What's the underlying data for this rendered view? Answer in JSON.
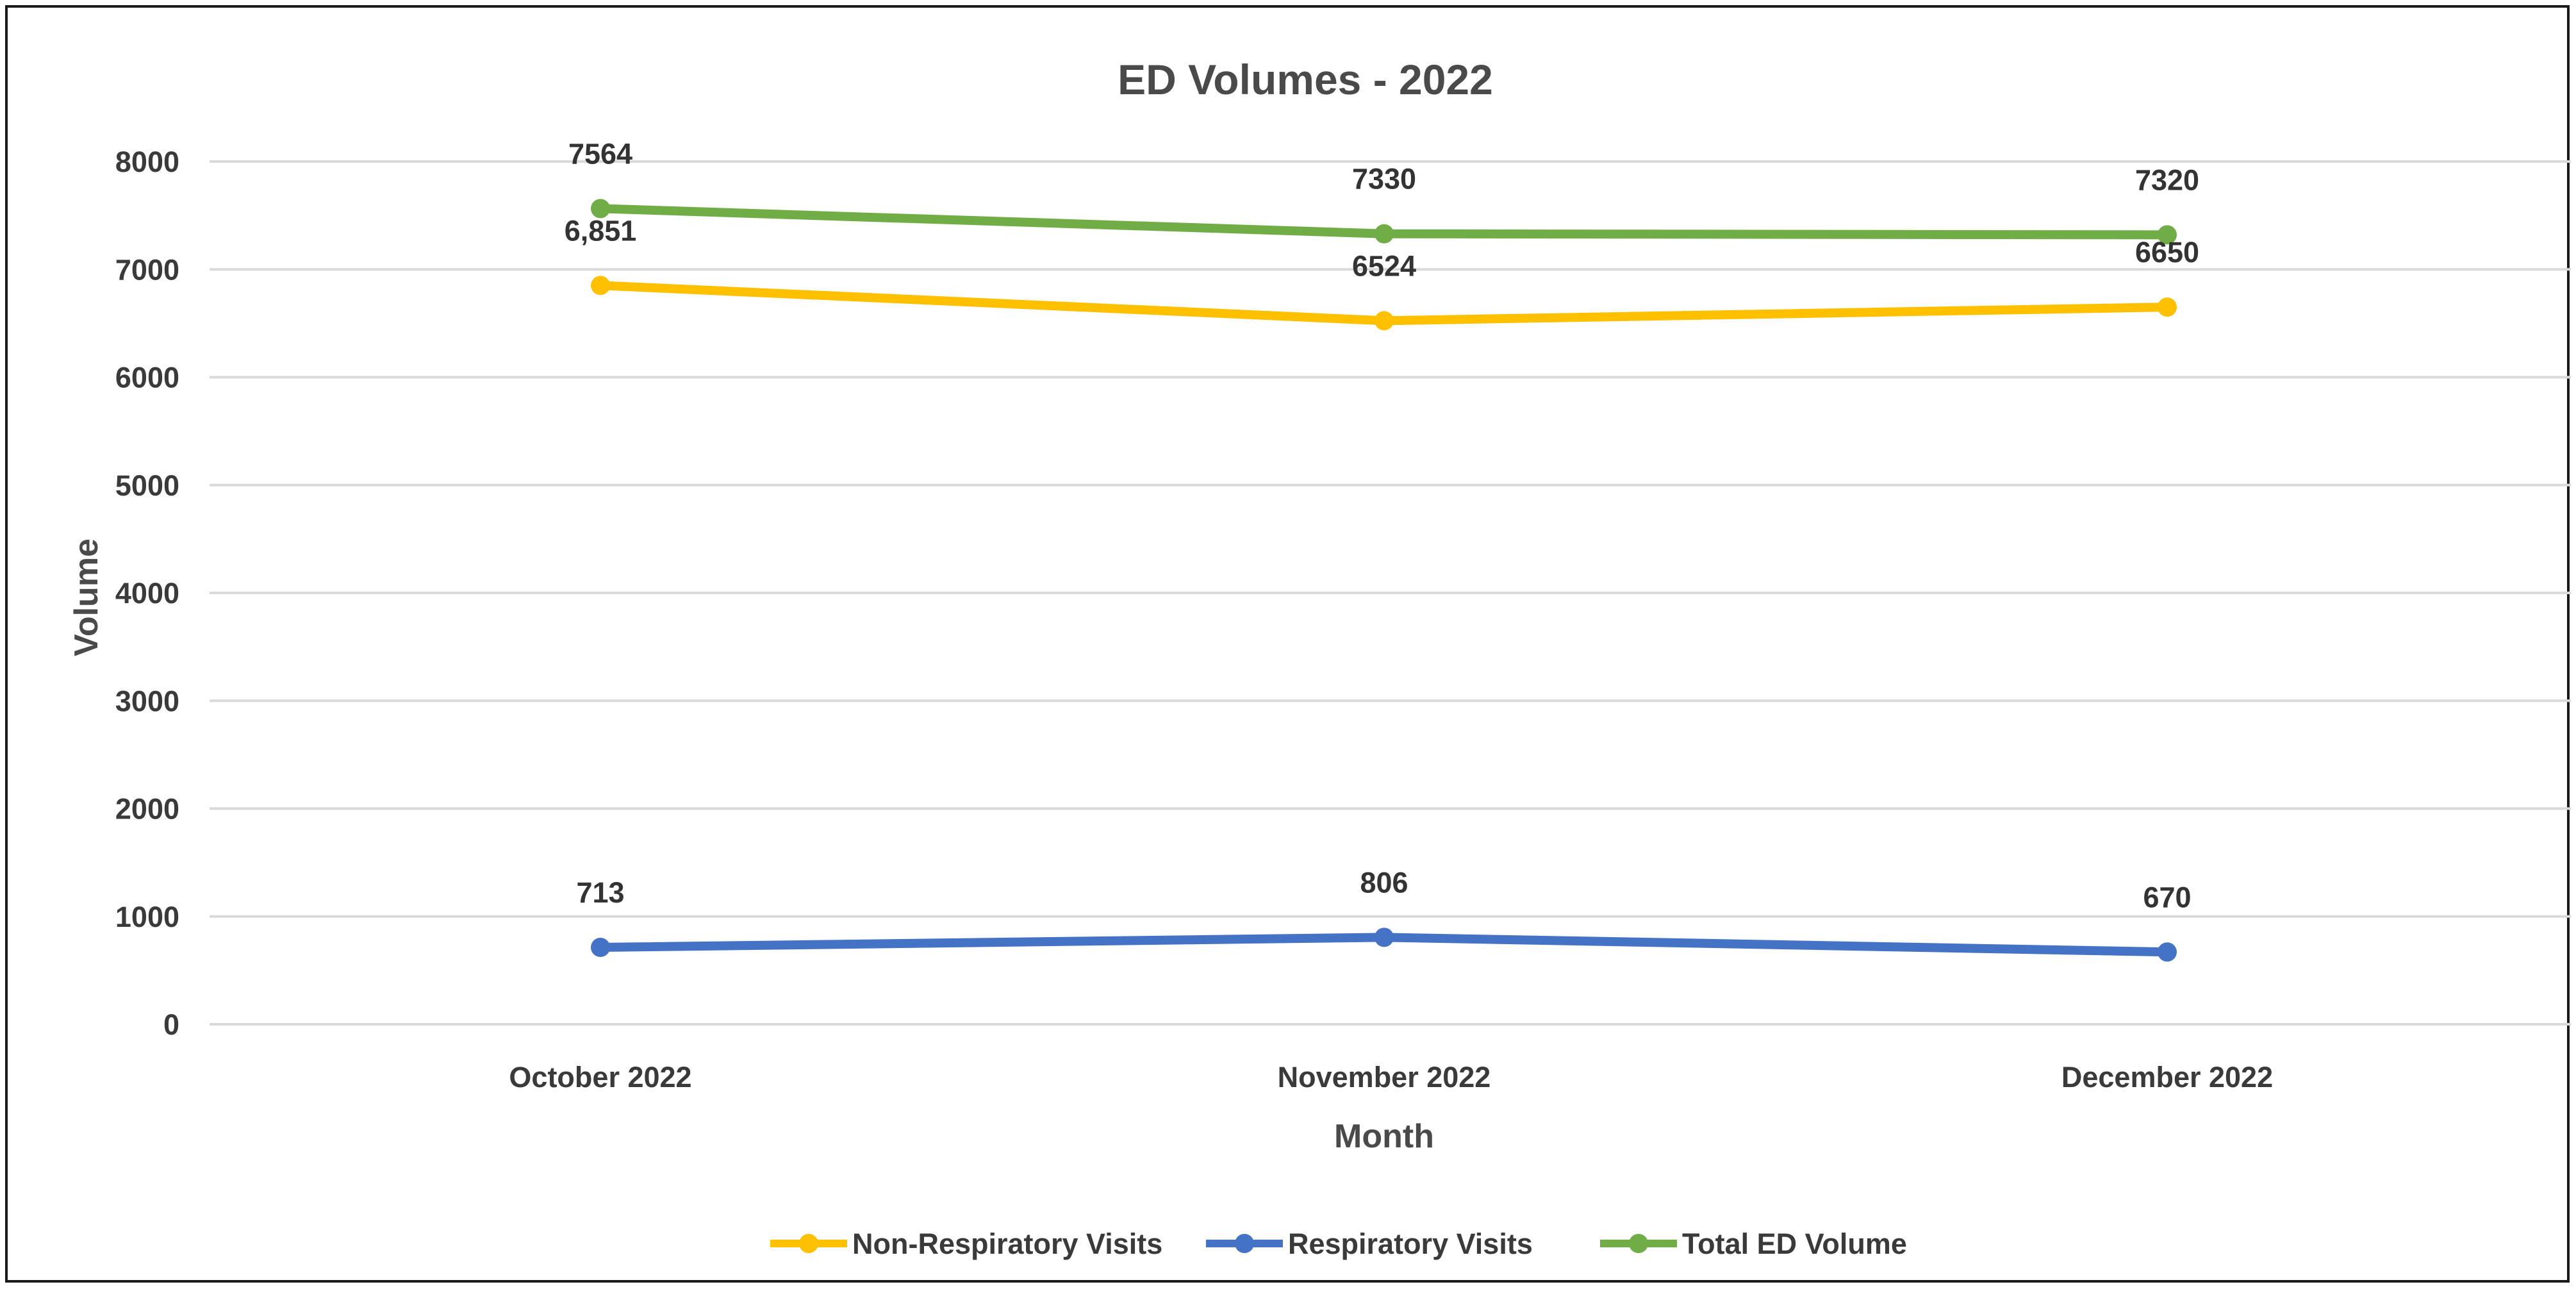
{
  "chart_data": {
    "type": "line",
    "title": "ED Volumes - 2022",
    "xlabel": "Month",
    "ylabel": "Volume",
    "categories": [
      "October 2022",
      "November 2022",
      "December 2022"
    ],
    "ylim": [
      0,
      8000
    ],
    "yticks": [
      0,
      1000,
      2000,
      3000,
      4000,
      5000,
      6000,
      7000,
      8000
    ],
    "grid": true,
    "legend_position": "bottom",
    "series": [
      {
        "name": "Non-Respiratory Visits",
        "color": "#FFC000",
        "values": [
          6851,
          6524,
          6650
        ],
        "labels": [
          "6,851",
          "6524",
          "6650"
        ]
      },
      {
        "name": "Respiratory Visits",
        "color": "#4472C4",
        "values": [
          713,
          806,
          670
        ],
        "labels": [
          "713",
          "806",
          "670"
        ]
      },
      {
        "name": "Total ED Volume",
        "color": "#70AD47",
        "values": [
          7564,
          7330,
          7320
        ],
        "labels": [
          "7564",
          "7330",
          "7320"
        ]
      }
    ]
  }
}
